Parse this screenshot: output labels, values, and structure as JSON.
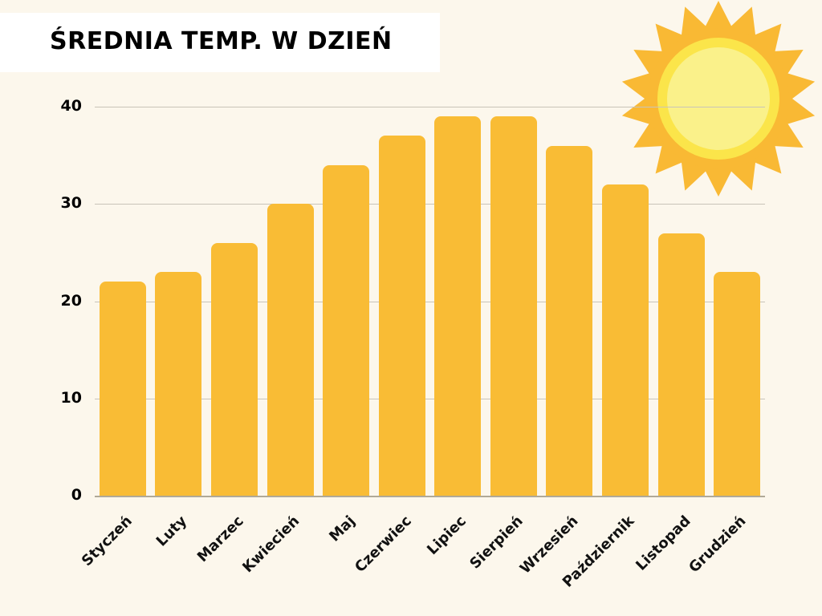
{
  "title": "ŚREDNIA TEMP. W DZIEŃ",
  "colors": {
    "background": "#fcf7ec",
    "bar": "#f9bc35",
    "title_box": "#ffffff",
    "sun_rays": "#f9b934",
    "sun_outer": "#fbe54a",
    "sun_inner": "#faf18a"
  },
  "y_ticks": [
    "0",
    "10",
    "20",
    "30",
    "40"
  ],
  "chart_data": {
    "type": "bar",
    "title": "ŚREDNIA TEMP. W DZIEŃ",
    "categories": [
      "Styczeń",
      "Luty",
      "Marzec",
      "Kwiecień",
      "Maj",
      "Czerwiec",
      "Lipiec",
      "Sierpień",
      "Wrzesień",
      "Październik",
      "Listopad",
      "Grudzień"
    ],
    "values": [
      22,
      23,
      26,
      30,
      34,
      37,
      39,
      39,
      36,
      32,
      27,
      23
    ],
    "xlabel": "",
    "ylabel": "",
    "ylim": [
      0,
      40
    ],
    "yticks": [
      0,
      10,
      20,
      30,
      40
    ],
    "grid": true,
    "legend": "none"
  }
}
